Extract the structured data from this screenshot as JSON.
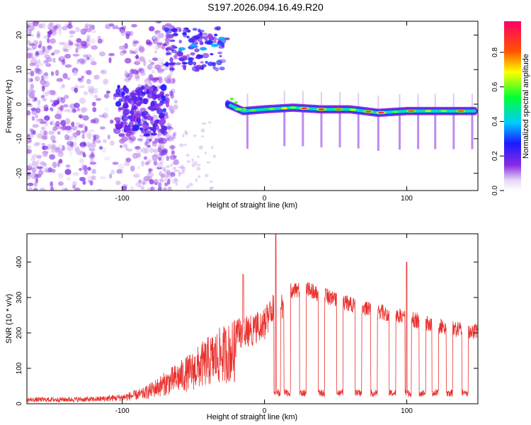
{
  "title": "S197.2026.094.16.49.R20",
  "chart_data": [
    {
      "type": "heatmap",
      "xlabel": "Height of straight line (km)",
      "ylabel": "Frequency (Hz)",
      "xlim": [
        -167,
        150
      ],
      "ylim": [
        -25,
        24
      ],
      "xticks": [
        -100,
        0,
        100
      ],
      "yticks": [
        -20,
        -10,
        0,
        10,
        20
      ],
      "colorbar": {
        "label": "Normalized spectral amplitude",
        "ticks": [
          "0.0",
          "0.2",
          "0.4",
          "0.6",
          "0.8"
        ],
        "range": [
          0,
          0.98
        ]
      },
      "main_band": {
        "x_start": -26,
        "x_end": 148,
        "freq_points": [
          [
            -26,
            0
          ],
          [
            -15,
            -2
          ],
          [
            0,
            -1.5
          ],
          [
            20,
            -1
          ],
          [
            40,
            -1.5
          ],
          [
            60,
            -1.5
          ],
          [
            80,
            -2.5
          ],
          [
            100,
            -2
          ],
          [
            120,
            -2
          ],
          [
            148,
            -2
          ]
        ]
      },
      "spike_heights": [
        -12,
        14,
        27,
        40,
        53,
        66,
        80,
        95,
        108,
        120,
        133,
        146
      ]
    },
    {
      "type": "line",
      "xlabel": "Height of straight line (km)",
      "ylabel": "SNR (10 * v/v)",
      "xlim": [
        -167,
        150
      ],
      "ylim": [
        0,
        480
      ],
      "xticks": [
        -100,
        0,
        100
      ],
      "yticks": [
        0,
        100,
        200,
        300,
        400
      ],
      "color": "#e8322e",
      "envelope": [
        [
          -167,
          18
        ],
        [
          -120,
          20
        ],
        [
          -100,
          28
        ],
        [
          -85,
          45
        ],
        [
          -70,
          90
        ],
        [
          -60,
          120
        ],
        [
          -50,
          150
        ],
        [
          -40,
          190
        ],
        [
          -30,
          220
        ],
        [
          -20,
          240
        ],
        [
          -10,
          250
        ],
        [
          0,
          270
        ],
        [
          5,
          310
        ],
        [
          15,
          330
        ],
        [
          20,
          345
        ],
        [
          30,
          345
        ],
        [
          40,
          330
        ],
        [
          55,
          310
        ],
        [
          70,
          290
        ],
        [
          90,
          275
        ],
        [
          110,
          255
        ],
        [
          130,
          235
        ],
        [
          150,
          225
        ]
      ],
      "dropouts_low": 20,
      "peaks": [
        [
          8,
          478
        ],
        [
          100,
          400
        ],
        [
          -15,
          365
        ]
      ]
    }
  ]
}
